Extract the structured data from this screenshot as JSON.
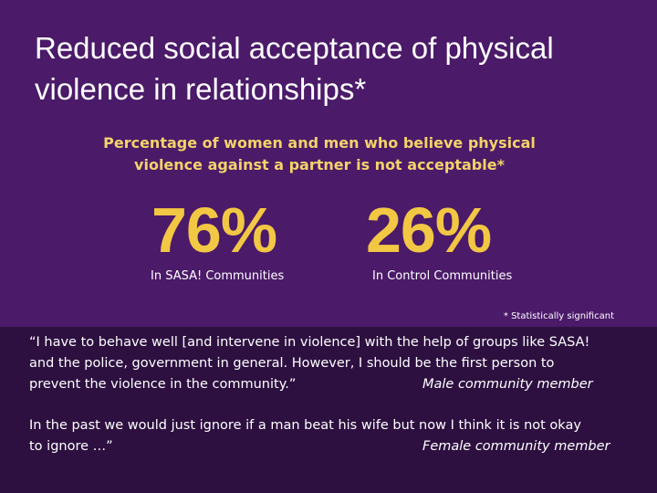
{
  "title": {
    "lines": [
      "Reduced social acceptance of physical",
      "violence in relationships*"
    ]
  },
  "subtitle": {
    "lines": [
      "Percentage of  women and men who believe physical",
      "violence against a partner is not acceptable*"
    ]
  },
  "stats": [
    {
      "value": "76%",
      "caption": "In SASA! Communities"
    },
    {
      "value": "26%",
      "caption": "In Control Communities"
    }
  ],
  "footnote": "* Statistically significant",
  "quotes": [
    {
      "lines": [
        "“I have to behave well [and intervene in violence] with the help of groups like SASA!",
        "and the police, government in general.  However, I should be the first person to",
        "prevent the violence in the community.”"
      ],
      "attribution": "Male community member"
    },
    {
      "lines": [
        "In the past we would just ignore if a man beat his wife but now I think it is not okay",
        "to ignore …”"
      ],
      "attribution": "Female community member"
    }
  ]
}
